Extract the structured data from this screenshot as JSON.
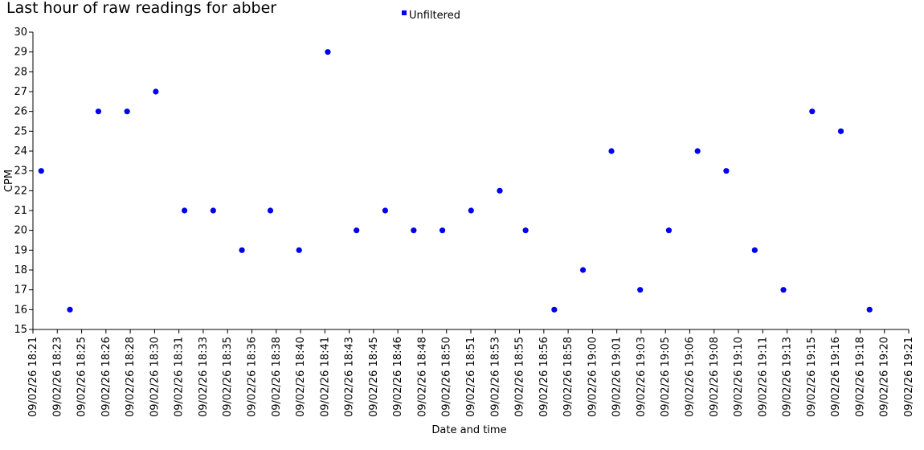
{
  "chart_data": {
    "type": "scatter",
    "title": "Last hour of raw readings for abber",
    "xlabel": "Date and time",
    "ylabel": "CPM",
    "ylim": [
      15,
      30
    ],
    "yticks": [
      15,
      16,
      17,
      18,
      19,
      20,
      21,
      22,
      23,
      24,
      25,
      26,
      27,
      28,
      29,
      30
    ],
    "x_tick_labels": [
      "09/02/26 18:21",
      "09/02/26 18:23",
      "09/02/26 18:25",
      "09/02/26 18:26",
      "09/02/26 18:28",
      "09/02/26 18:30",
      "09/02/26 18:31",
      "09/02/26 18:33",
      "09/02/26 18:35",
      "09/02/26 18:36",
      "09/02/26 18:38",
      "09/02/26 18:40",
      "09/02/26 18:41",
      "09/02/26 18:43",
      "09/02/26 18:45",
      "09/02/26 18:46",
      "09/02/26 18:48",
      "09/02/26 18:50",
      "09/02/26 18:51",
      "09/02/26 18:53",
      "09/02/26 18:55",
      "09/02/26 18:56",
      "09/02/26 18:58",
      "09/02/26 19:00",
      "09/02/26 19:01",
      "09/02/26 19:03",
      "09/02/26 19:05",
      "09/02/26 19:06",
      "09/02/26 19:08",
      "09/02/26 19:10",
      "09/02/26 19:11",
      "09/02/26 19:13",
      "09/02/26 19:15",
      "09/02/26 19:16",
      "09/02/26 19:18",
      "09/02/26 19:20",
      "09/02/26 19:21"
    ],
    "legend": {
      "position": "top-center",
      "entries": [
        "Unfiltered"
      ]
    },
    "grid": false,
    "series": [
      {
        "name": "Unfiltered",
        "color": "#0000ee",
        "points": [
          {
            "x": "09/02/26 18:21:42",
            "y": 23
          },
          {
            "x": "09/02/26 18:23:40",
            "y": 16
          },
          {
            "x": "09/02/26 18:25:37",
            "y": 26
          },
          {
            "x": "09/02/26 18:27:35",
            "y": 26
          },
          {
            "x": "09/02/26 18:29:33",
            "y": 27
          },
          {
            "x": "09/02/26 18:31:31",
            "y": 21
          },
          {
            "x": "09/02/26 18:33:29",
            "y": 21
          },
          {
            "x": "09/02/26 18:35:27",
            "y": 19
          },
          {
            "x": "09/02/26 18:37:24",
            "y": 21
          },
          {
            "x": "09/02/26 18:39:22",
            "y": 19
          },
          {
            "x": "09/02/26 18:41:20",
            "y": 29
          },
          {
            "x": "09/02/26 18:43:18",
            "y": 20
          },
          {
            "x": "09/02/26 18:45:16",
            "y": 21
          },
          {
            "x": "09/02/26 18:47:13",
            "y": 20
          },
          {
            "x": "09/02/26 18:49:11",
            "y": 20
          },
          {
            "x": "09/02/26 18:51:09",
            "y": 21
          },
          {
            "x": "09/02/26 18:53:07",
            "y": 22
          },
          {
            "x": "09/02/26 18:54:53",
            "y": 20
          },
          {
            "x": "09/02/26 18:56:51",
            "y": 16
          },
          {
            "x": "09/02/26 18:58:49",
            "y": 18
          },
          {
            "x": "09/02/26 19:00:46",
            "y": 24
          },
          {
            "x": "09/02/26 19:02:44",
            "y": 17
          },
          {
            "x": "09/02/26 19:04:42",
            "y": 20
          },
          {
            "x": "09/02/26 19:06:40",
            "y": 24
          },
          {
            "x": "09/02/26 19:08:38",
            "y": 23
          },
          {
            "x": "09/02/26 19:10:35",
            "y": 19
          },
          {
            "x": "09/02/26 19:12:33",
            "y": 17
          },
          {
            "x": "09/02/26 19:14:31",
            "y": 26
          },
          {
            "x": "09/02/26 19:16:29",
            "y": 25
          },
          {
            "x": "09/02/26 19:18:27",
            "y": 16
          }
        ]
      }
    ]
  }
}
